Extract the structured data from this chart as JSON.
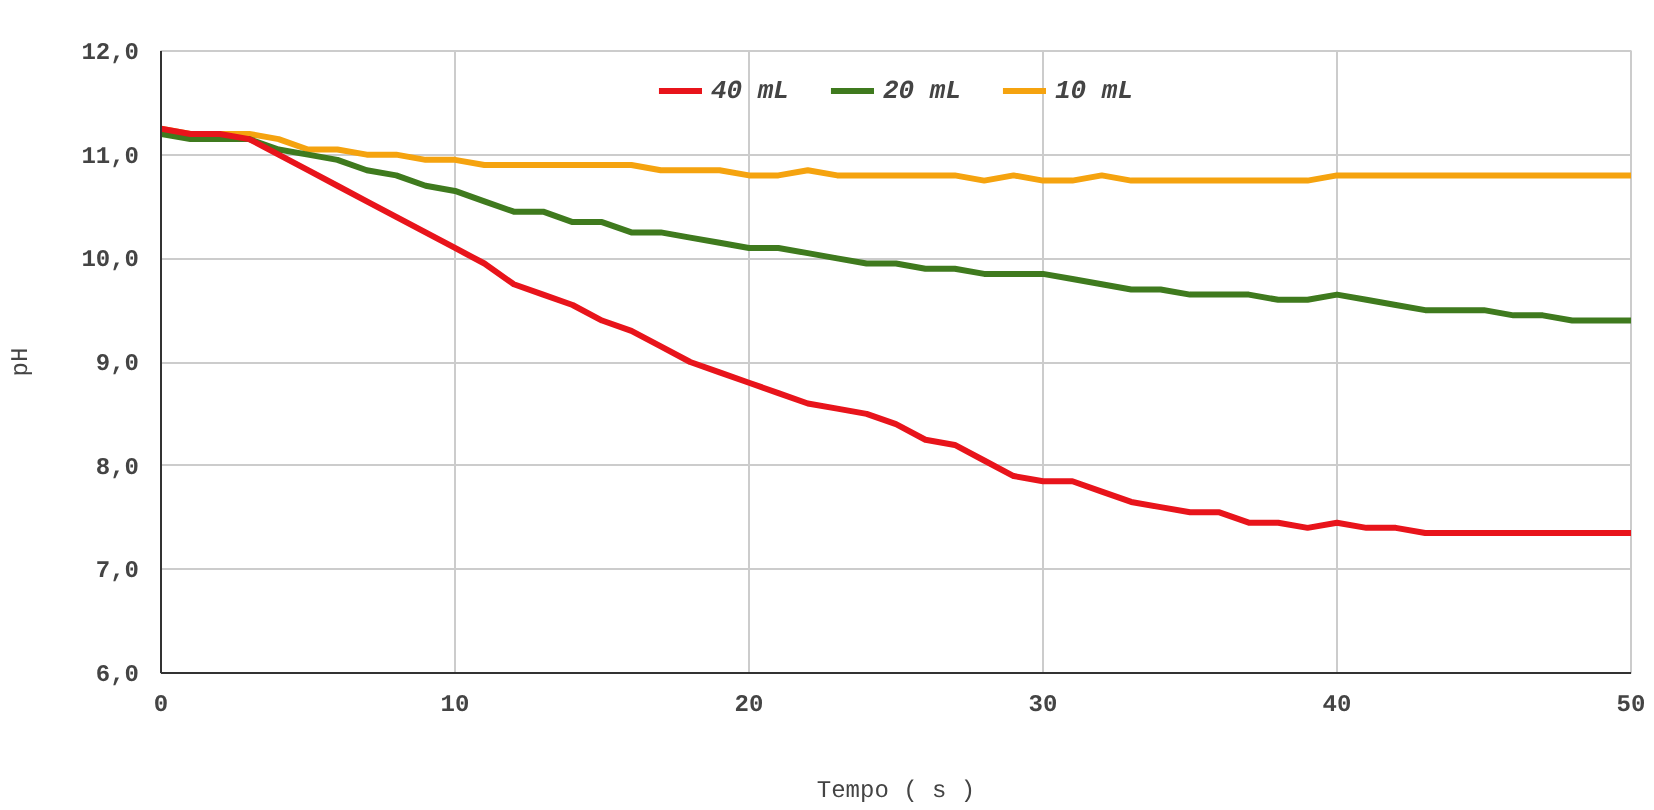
{
  "chart_data": {
    "type": "line",
    "xlabel": "Tempo ( s )",
    "ylabel": "pH",
    "x": [
      0,
      1,
      2,
      3,
      4,
      5,
      6,
      7,
      8,
      9,
      10,
      11,
      12,
      13,
      14,
      15,
      16,
      17,
      18,
      19,
      20,
      21,
      22,
      23,
      24,
      25,
      26,
      27,
      28,
      29,
      30,
      31,
      32,
      33,
      34,
      35,
      36,
      37,
      38,
      39,
      40,
      41,
      42,
      43,
      44,
      45,
      46,
      47,
      48,
      49,
      50
    ],
    "series": [
      {
        "name": "40 mL",
        "color": "#e8141b",
        "values": [
          11.25,
          11.2,
          11.2,
          11.15,
          11.0,
          10.85,
          10.7,
          10.55,
          10.4,
          10.25,
          10.1,
          9.95,
          9.75,
          9.65,
          9.55,
          9.4,
          9.3,
          9.15,
          9.0,
          8.9,
          8.8,
          8.7,
          8.6,
          8.55,
          8.5,
          8.4,
          8.25,
          8.2,
          8.05,
          7.9,
          7.85,
          7.85,
          7.75,
          7.65,
          7.6,
          7.55,
          7.55,
          7.45,
          7.45,
          7.4,
          7.45,
          7.4,
          7.4,
          7.35,
          7.35,
          7.35,
          7.35,
          7.35,
          7.35,
          7.35,
          7.35
        ]
      },
      {
        "name": "20 mL",
        "color": "#3f7a1e",
        "values": [
          11.2,
          11.15,
          11.15,
          11.15,
          11.05,
          11.0,
          10.95,
          10.85,
          10.8,
          10.7,
          10.65,
          10.55,
          10.45,
          10.45,
          10.35,
          10.35,
          10.25,
          10.25,
          10.2,
          10.15,
          10.1,
          10.1,
          10.05,
          10.0,
          9.95,
          9.95,
          9.9,
          9.9,
          9.85,
          9.85,
          9.85,
          9.8,
          9.75,
          9.7,
          9.7,
          9.65,
          9.65,
          9.65,
          9.6,
          9.6,
          9.65,
          9.6,
          9.55,
          9.5,
          9.5,
          9.5,
          9.45,
          9.45,
          9.4,
          9.4,
          9.4
        ]
      },
      {
        "name": "10 mL",
        "color": "#f5a30f",
        "values": [
          11.25,
          11.2,
          11.2,
          11.2,
          11.15,
          11.05,
          11.05,
          11.0,
          11.0,
          10.95,
          10.95,
          10.9,
          10.9,
          10.9,
          10.9,
          10.9,
          10.9,
          10.85,
          10.85,
          10.85,
          10.8,
          10.8,
          10.85,
          10.8,
          10.8,
          10.8,
          10.8,
          10.8,
          10.75,
          10.8,
          10.75,
          10.75,
          10.8,
          10.75,
          10.75,
          10.75,
          10.75,
          10.75,
          10.75,
          10.75,
          10.8,
          10.8,
          10.8,
          10.8,
          10.8,
          10.8,
          10.8,
          10.8,
          10.8,
          10.8,
          10.8
        ]
      }
    ],
    "xlim": [
      0,
      50
    ],
    "xticks": [
      0,
      10,
      20,
      30,
      40,
      50
    ],
    "ylim": [
      6,
      12
    ],
    "yticks": [
      {
        "value": 6,
        "label": "6,0"
      },
      {
        "value": 7,
        "label": "7,0"
      },
      {
        "value": 8,
        "label": "8,0"
      },
      {
        "value": 9,
        "label": "9,0"
      },
      {
        "value": 10,
        "label": "10,0"
      },
      {
        "value": 11,
        "label": "11,0"
      },
      {
        "value": 12,
        "label": "12,0"
      }
    ],
    "grid": true,
    "legend": "top",
    "marker": "none",
    "line_style": "solid"
  }
}
